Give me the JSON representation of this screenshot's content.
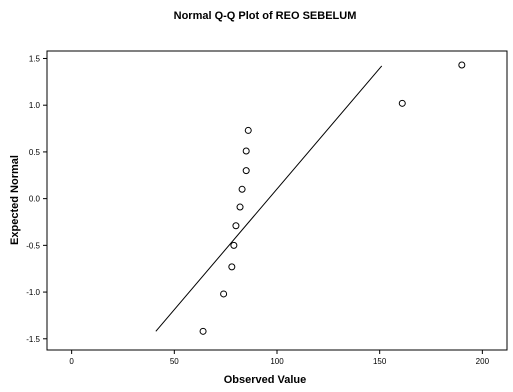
{
  "chart_data": {
    "type": "scatter",
    "title": "Normal Q-Q Plot of REO SEBELUM",
    "xlabel": "Observed Value",
    "ylabel": "Expected Normal",
    "xlim": [
      -12,
      212
    ],
    "ylim": [
      -1.62,
      1.58
    ],
    "x_ticks": [
      0,
      50,
      100,
      150,
      200
    ],
    "x_tick_labels": [
      "0",
      "50",
      "100",
      "150",
      "200"
    ],
    "y_ticks": [
      -1.5,
      -1.0,
      -0.5,
      0.0,
      0.5,
      1.0,
      1.5
    ],
    "y_tick_labels": [
      "-1.5",
      "-1.0",
      "-0.5",
      "0.0",
      "0.5",
      "1.0",
      "1.5"
    ],
    "grid": false,
    "points": [
      {
        "x": 64,
        "y": -1.42
      },
      {
        "x": 74,
        "y": -1.02
      },
      {
        "x": 78,
        "y": -0.73
      },
      {
        "x": 79,
        "y": -0.5
      },
      {
        "x": 80,
        "y": -0.29
      },
      {
        "x": 82,
        "y": -0.09
      },
      {
        "x": 83,
        "y": 0.1
      },
      {
        "x": 85,
        "y": 0.3
      },
      {
        "x": 85,
        "y": 0.51
      },
      {
        "x": 86,
        "y": 0.73
      },
      {
        "x": 161,
        "y": 1.02
      },
      {
        "x": 190,
        "y": 1.43
      }
    ],
    "reference_line": {
      "x": [
        41,
        151
      ],
      "y": [
        -1.42,
        1.42
      ]
    },
    "colors": {
      "marker_stroke": "#000000",
      "line": "#000000",
      "frame": "#000000"
    }
  }
}
